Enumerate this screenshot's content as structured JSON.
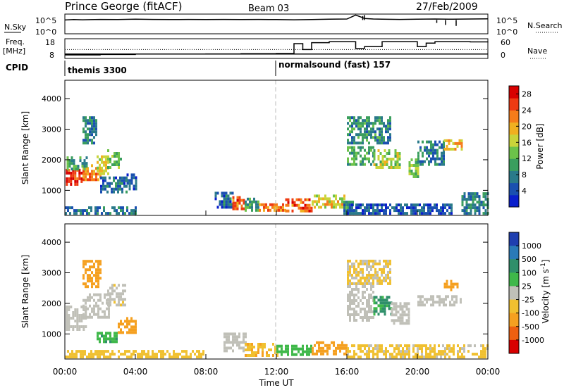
{
  "header": {
    "station": "Prince George (fitACF)",
    "beam": "Beam 03",
    "date": "27/Feb/2009"
  },
  "chart_data": [
    {
      "type": "line",
      "panel": "noise",
      "left_label": "N.Sky",
      "right_label": "N.Search",
      "left_ticks": [
        "10^5",
        "10^0"
      ],
      "right_ticks": [
        "10^5",
        "10^0"
      ],
      "series_sky": {
        "x": [
          0.0,
          0.5,
          1,
          2,
          3,
          4,
          5,
          6,
          7,
          8,
          9,
          10,
          11,
          12,
          13,
          14,
          15,
          16,
          16.5,
          16.8,
          17,
          17.5,
          18,
          19,
          20,
          21,
          22,
          23,
          24
        ],
        "y": [
          0.7,
          0.72,
          0.71,
          0.73,
          0.72,
          0.74,
          0.73,
          0.72,
          0.73,
          0.72,
          0.73,
          0.72,
          0.73,
          0.72,
          0.71,
          0.72,
          0.74,
          0.75,
          0.95,
          0.85,
          0.78,
          0.75,
          0.74,
          0.73,
          0.74,
          0.75,
          0.74,
          0.75,
          0.76
        ]
      },
      "spikes": [
        {
          "t": 16.9,
          "v": 0.9
        },
        {
          "t": 17.0,
          "v": 0.95
        },
        {
          "t": 21.1,
          "v": 0.55
        },
        {
          "t": 21.6,
          "v": 0.45
        },
        {
          "t": 22.2,
          "v": 0.4
        }
      ]
    },
    {
      "type": "line",
      "panel": "frequency",
      "left_label_1": "Freq.",
      "left_label_2": "[MHz]",
      "right_label": "Nave",
      "left_ticks": [
        18,
        8
      ],
      "right_ticks": [
        60,
        0
      ],
      "freq": {
        "x": [
          0,
          3.5,
          3.5,
          12,
          12
        ],
        "y": [
          10.2,
          10.2,
          10.2,
          10.2,
          10.2
        ]
      },
      "nave": {
        "x": [
          0,
          2,
          4,
          6,
          8,
          10,
          12,
          13,
          13.5,
          14,
          15,
          16,
          16.5,
          17,
          18,
          19,
          20,
          20.5,
          21,
          22,
          23,
          24
        ],
        "y": [
          0.18,
          0.2,
          0.22,
          0.22,
          0.23,
          0.24,
          0.25,
          0.75,
          0.45,
          0.8,
          0.85,
          0.85,
          0.5,
          0.6,
          0.85,
          0.85,
          0.6,
          0.78,
          0.85,
          0.85,
          0.84,
          0.85
        ]
      },
      "dotted_level": 0.45
    },
    {
      "type": "bar",
      "panel": "cpid",
      "label": "CPID",
      "segments": [
        {
          "start": 0,
          "end": 12,
          "name": "themis 3300"
        },
        {
          "start": 12,
          "end": 24,
          "name": "normalsound (fast) 157"
        }
      ]
    },
    {
      "type": "heatmap",
      "panel": "power",
      "ylabel": "Slant Range [km]",
      "yticks": [
        1000,
        2000,
        3000,
        4000
      ],
      "ylim": [
        180,
        4600
      ],
      "xlim": [
        0,
        24
      ],
      "colorbar": {
        "label": "Power [dB]",
        "ticks": [
          4,
          8,
          12,
          16,
          20,
          24,
          28
        ],
        "colors": [
          "#0a1fcc",
          "#1a50b0",
          "#2a7a8a",
          "#3a9e5e",
          "#6cc24a",
          "#c9d43a",
          "#f0b020",
          "#f57c1a",
          "#ee3a12",
          "#d80000"
        ],
        "range": [
          0,
          30
        ]
      },
      "patches": [
        {
          "t0": 0.05,
          "t1": 1.0,
          "r0": 1150,
          "r1": 1650,
          "v": 27
        },
        {
          "t0": 1.0,
          "t1": 2.0,
          "r0": 1300,
          "r1": 1800,
          "v": 22
        },
        {
          "t0": 1.8,
          "t1": 2.5,
          "r0": 1500,
          "r1": 2100,
          "v": 17
        },
        {
          "t0": 2.4,
          "t1": 3.2,
          "r0": 1700,
          "r1": 2300,
          "v": 12
        },
        {
          "t0": 0.1,
          "t1": 1.2,
          "r0": 1650,
          "r1": 2100,
          "v": 11
        },
        {
          "t0": 1.0,
          "t1": 1.8,
          "r0": 2500,
          "r1": 3400,
          "v": 8
        },
        {
          "t0": 2.0,
          "t1": 3.5,
          "r0": 900,
          "r1": 1400,
          "v": 6
        },
        {
          "t0": 3.5,
          "t1": 4.0,
          "r0": 1000,
          "r1": 1500,
          "v": 5
        },
        {
          "t0": 0.0,
          "t1": 4.0,
          "r0": 200,
          "r1": 450,
          "v": 7
        },
        {
          "t0": 8.5,
          "t1": 9.5,
          "r0": 400,
          "r1": 900,
          "v": 6
        },
        {
          "t0": 9.5,
          "t1": 10.2,
          "r0": 350,
          "r1": 800,
          "v": 24
        },
        {
          "t0": 10.2,
          "t1": 11.0,
          "r0": 300,
          "r1": 700,
          "v": 10
        },
        {
          "t0": 11.0,
          "t1": 12.5,
          "r0": 300,
          "r1": 550,
          "v": 22
        },
        {
          "t0": 12.5,
          "t1": 14.0,
          "r0": 280,
          "r1": 650,
          "v": 24
        },
        {
          "t0": 14.0,
          "t1": 15.8,
          "r0": 400,
          "r1": 800,
          "v": 18
        },
        {
          "t0": 15.8,
          "t1": 16.3,
          "r0": 200,
          "r1": 600,
          "v": 9
        },
        {
          "t0": 16.0,
          "t1": 17.5,
          "r0": 1800,
          "r1": 2400,
          "v": 11
        },
        {
          "t0": 17.5,
          "t1": 19.0,
          "r0": 1700,
          "r1": 2300,
          "v": 15
        },
        {
          "t0": 16.0,
          "t1": 18.5,
          "r0": 2500,
          "r1": 3400,
          "v": 9
        },
        {
          "t0": 19.5,
          "t1": 20.0,
          "r0": 1400,
          "r1": 2000,
          "v": 14
        },
        {
          "t0": 20.0,
          "t1": 21.5,
          "r0": 1800,
          "r1": 2600,
          "v": 7
        },
        {
          "t0": 21.5,
          "t1": 22.5,
          "r0": 2300,
          "r1": 2600,
          "v": 20
        },
        {
          "t0": 22.5,
          "t1": 24.0,
          "r0": 200,
          "r1": 900,
          "v": 8
        },
        {
          "t0": 16.0,
          "t1": 22.0,
          "r0": 200,
          "r1": 500,
          "v": 5
        }
      ]
    },
    {
      "type": "heatmap",
      "panel": "velocity",
      "ylabel": "Slant Range [km]",
      "xlabel": "Time UT",
      "yticks": [
        1000,
        2000,
        3000,
        4000
      ],
      "ylim": [
        180,
        4600
      ],
      "xlim": [
        0,
        24
      ],
      "xticks": [
        "00:00",
        "04:00",
        "08:00",
        "12:00",
        "16:00",
        "20:00",
        "00:00"
      ],
      "colorbar": {
        "label": "Velocity [m s^-1]",
        "ticks": [
          "1000",
          "500",
          "100",
          "25",
          "-25",
          "-100",
          "-500",
          "-1000"
        ],
        "colors": [
          "#1f3fb0",
          "#2a6ab8",
          "#2f8f6a",
          "#3fb84a",
          "#a6d83a",
          "#c0c0b8",
          "#f0c030",
          "#f5a020",
          "#ee6010",
          "#d80000"
        ],
        "range": [
          -1000,
          1000
        ]
      },
      "patches": [
        {
          "t0": 0.05,
          "t1": 1.2,
          "r0": 1100,
          "r1": 1900,
          "v": 0
        },
        {
          "t0": 1.0,
          "t1": 2.5,
          "r0": 1500,
          "r1": 2300,
          "v": 5
        },
        {
          "t0": 2.4,
          "t1": 3.4,
          "r0": 1900,
          "r1": 2600,
          "v": -10
        },
        {
          "t0": 1.8,
          "t1": 3.0,
          "r0": 700,
          "r1": 1000,
          "v": 80
        },
        {
          "t0": 3.0,
          "t1": 4.0,
          "r0": 1000,
          "r1": 1500,
          "v": -300
        },
        {
          "t0": 1.0,
          "t1": 2.0,
          "r0": 2500,
          "r1": 3400,
          "v": -200
        },
        {
          "t0": 9.0,
          "t1": 10.2,
          "r0": 400,
          "r1": 1000,
          "v": 0
        },
        {
          "t0": 10.2,
          "t1": 12.0,
          "r0": 250,
          "r1": 700,
          "v": -80
        },
        {
          "t0": 12.0,
          "t1": 14.0,
          "r0": 280,
          "r1": 600,
          "v": 60
        },
        {
          "t0": 14.0,
          "t1": 16.0,
          "r0": 300,
          "r1": 700,
          "v": -200
        },
        {
          "t0": 16.0,
          "t1": 17.5,
          "r0": 1400,
          "r1": 2600,
          "v": 0
        },
        {
          "t0": 17.5,
          "t1": 18.5,
          "r0": 1600,
          "r1": 2200,
          "v": 120
        },
        {
          "t0": 16.0,
          "t1": 18.5,
          "r0": 2600,
          "r1": 3400,
          "v": -30
        },
        {
          "t0": 18.5,
          "t1": 19.5,
          "r0": 1300,
          "r1": 2000,
          "v": 0
        },
        {
          "t0": 20.0,
          "t1": 22.5,
          "r0": 1900,
          "r1": 2200,
          "v": 0
        },
        {
          "t0": 21.5,
          "t1": 22.3,
          "r0": 2400,
          "r1": 2700,
          "v": -300
        },
        {
          "t0": 0.0,
          "t1": 8.0,
          "r0": 200,
          "r1": 400,
          "v": -60
        },
        {
          "t0": 16.0,
          "t1": 24.0,
          "r0": 200,
          "r1": 600,
          "v": -40
        }
      ]
    }
  ]
}
